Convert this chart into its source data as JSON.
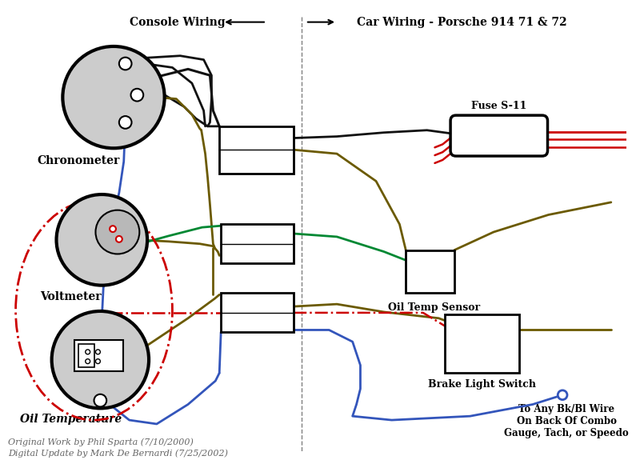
{
  "title_left": "Console Wiring",
  "title_right": "Car Wiring - Porsche 914 71 & 72",
  "bg_color": "#ffffff",
  "labels": {
    "chronometer": "Chronometer",
    "voltmeter": "Voltmeter",
    "oil_temp": "Oil Temperature",
    "fuse": "Fuse S-11",
    "oil_sensor": "Oil Temp Sensor",
    "brake": "Brake Light Switch",
    "combo": "To Any Bk/Bl Wire\nOn Back Of Combo\nGauge, Tach, or Speedo"
  },
  "credit1": "Original Work by Phil Sparta (7/10/2000)",
  "credit2": "Digital Update by Mark De Bernardi (7/25/2002)",
  "olive": "#6b5a00",
  "blue": "#3355bb",
  "green": "#008833",
  "red": "#cc0000",
  "black": "#111111",
  "gray_gauge": "#cccccc"
}
